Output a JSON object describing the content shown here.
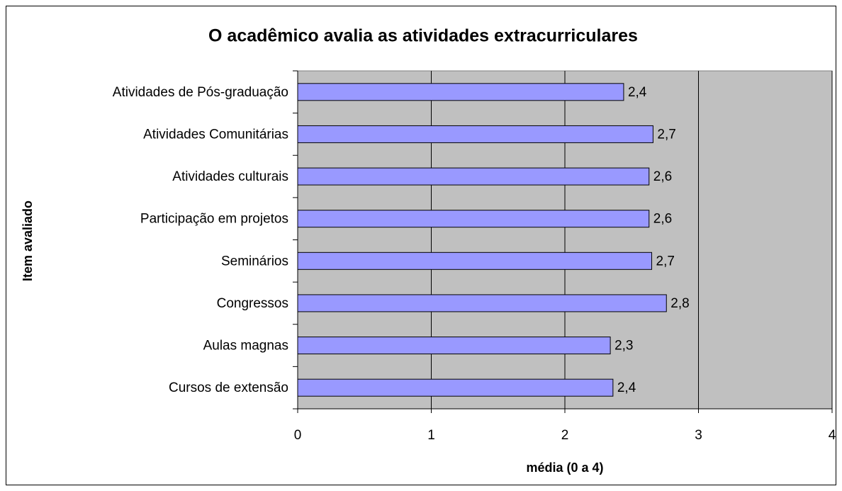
{
  "chart_data": {
    "type": "bar",
    "orientation": "horizontal",
    "title": "O acadêmico avalia as atividades extracurriculares",
    "x_label": "média (0 a 4)",
    "y_label": "Item avaliado",
    "categories": [
      "Atividades de Pós-graduação",
      "Atividades Comunitárias",
      "Atividades culturais",
      "Participação em projetos",
      "Seminários",
      "Congressos",
      "Aulas magnas",
      "Cursos de extensão"
    ],
    "values": [
      2.44,
      2.66,
      2.63,
      2.63,
      2.65,
      2.76,
      2.34,
      2.36
    ],
    "value_labels": [
      "2,4",
      "2,7",
      "2,6",
      "2,6",
      "2,7",
      "2,8",
      "2,3",
      "2,4"
    ],
    "color": "#9999ff",
    "plot_background": "#c0c0c0",
    "xlim": [
      0,
      4
    ],
    "xticks": [
      0,
      1,
      2,
      3,
      4
    ],
    "grid": true
  }
}
